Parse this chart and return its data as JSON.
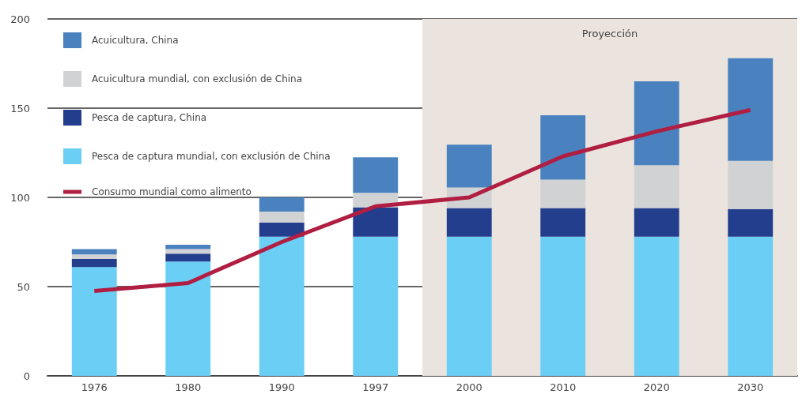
{
  "chart_data": {
    "type": "bar",
    "stacked": true,
    "categories": [
      "1976",
      "1980",
      "1990",
      "1997",
      "2000",
      "2010",
      "2020",
      "2030"
    ],
    "series": [
      {
        "name": "Pesca de captura mundial, con exclusión de China",
        "color": "#6bcef5",
        "values": [
          61,
          64,
          78,
          78,
          78,
          78,
          78,
          78
        ]
      },
      {
        "name": "Pesca de captura, China",
        "color": "#243e8e",
        "values": [
          4.5,
          4.5,
          8,
          16.5,
          16,
          16,
          16,
          15.5
        ]
      },
      {
        "name": "Acuicultura mundial, con exclusión de China",
        "color": "#d1d2d4",
        "values": [
          2.5,
          2.5,
          6,
          8,
          11.5,
          16,
          24,
          27
        ]
      },
      {
        "name": "Acuicultura, China",
        "color": "#4a82c0",
        "values": [
          3,
          2.5,
          8,
          20,
          24,
          36,
          47,
          57.5
        ]
      },
      {
        "name": "Consumo mundial como alimento",
        "type": "line",
        "color": "#b01e42",
        "values": [
          47.6,
          52,
          75,
          95,
          100,
          123,
          137,
          149
        ]
      }
    ],
    "ylim": [
      0,
      200
    ],
    "yticks": [
      0,
      50,
      100,
      150,
      200
    ],
    "grid": "y",
    "legend": "top left",
    "marker": "none",
    "bands": [
      {
        "axis": "x",
        "from": "2000",
        "to": "2030",
        "label": "Proyección",
        "color": "#ebe4de"
      }
    ]
  }
}
